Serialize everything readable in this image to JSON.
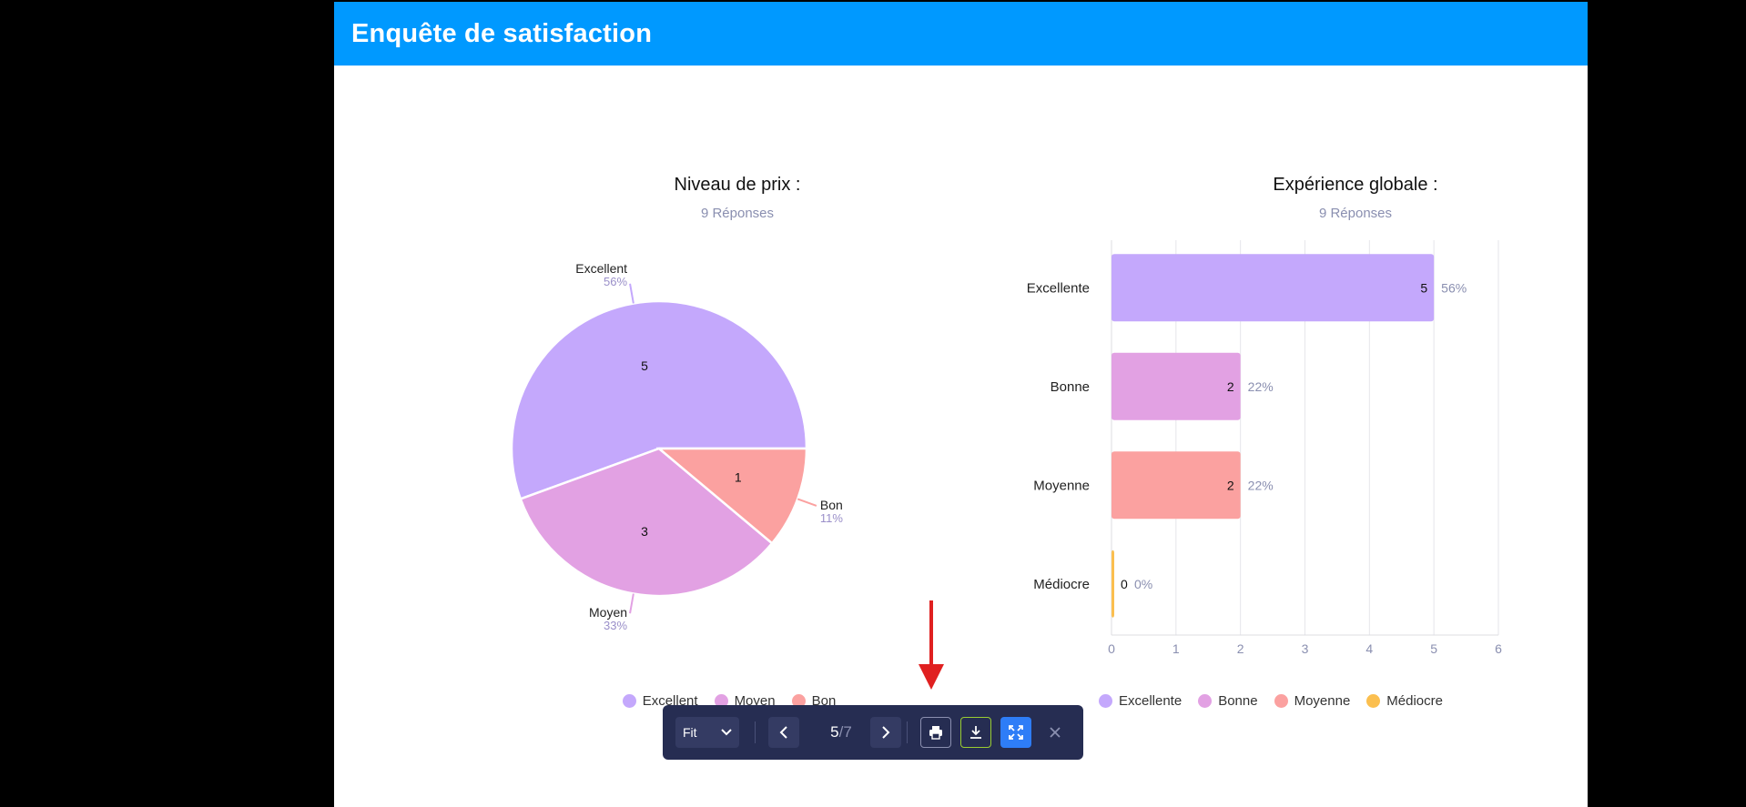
{
  "header": {
    "title": "Enquête de satisfaction"
  },
  "charts": {
    "price": {
      "title": "Niveau de prix :",
      "responses": "9 Réponses"
    },
    "experience": {
      "title": "Expérience globale :",
      "responses": "9 Réponses"
    }
  },
  "chart_data": [
    {
      "type": "pie",
      "title": "Niveau de prix :",
      "subtitle": "9 Réponses",
      "categories": [
        "Excellent",
        "Moyen",
        "Bon"
      ],
      "values": [
        5,
        3,
        1
      ],
      "percent_labels": [
        "56%",
        "33%",
        "11%"
      ],
      "colors": [
        "#c4a8fc",
        "#e2a1e3",
        "#fba1a0"
      ],
      "legend": [
        "Excellent",
        "Moyen",
        "Bon"
      ],
      "legend_position": "bottom"
    },
    {
      "type": "bar",
      "orientation": "horizontal",
      "title": "Expérience globale :",
      "subtitle": "9 Réponses",
      "categories": [
        "Excellente",
        "Bonne",
        "Moyenne",
        "Médiocre"
      ],
      "values": [
        5,
        2,
        2,
        0
      ],
      "percent_labels": [
        "56%",
        "22%",
        "22%",
        "0%"
      ],
      "colors": [
        "#c4a8fc",
        "#e2a1e3",
        "#fba1a0",
        "#fbbf4f"
      ],
      "xlim": [
        0,
        6
      ],
      "xticks": [
        "0",
        "1",
        "2",
        "3",
        "4",
        "5",
        "6"
      ],
      "grid": true,
      "legend": [
        "Excellente",
        "Bonne",
        "Moyenne",
        "Médiocre"
      ],
      "legend_position": "bottom"
    }
  ],
  "toolbar": {
    "zoom": "Fit",
    "page_current": "5",
    "page_total": "/7",
    "icons": {
      "prev": "chevron-left-icon",
      "next": "chevron-right-icon",
      "print": "printer-icon",
      "download": "download-icon",
      "fullscreen": "fullscreen-icon",
      "close": "close-icon"
    }
  },
  "annotation": {
    "arrow_color": "#e02020"
  }
}
